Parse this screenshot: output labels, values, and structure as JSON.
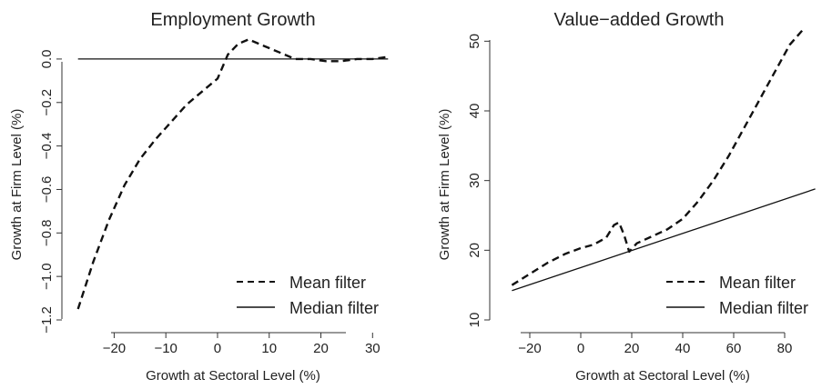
{
  "chart_data": [
    {
      "type": "line",
      "title": "Employment Growth",
      "xlabel": "Growth at Sectoral Level (%)",
      "ylabel": "Growth at Firm Level (%)",
      "xlim": [
        -28,
        34
      ],
      "ylim": [
        -1.2,
        0.1
      ],
      "xticks": [
        -20,
        -10,
        0,
        10,
        20,
        30
      ],
      "xtick_labels": [
        "−20",
        "−10",
        "0",
        "10",
        "20",
        "30"
      ],
      "yticks": [
        -1.2,
        -1.0,
        -0.8,
        -0.6,
        -0.4,
        -0.2,
        0.0
      ],
      "ytick_labels": [
        "−1.2",
        "−1.0",
        "−0.8",
        "−0.6",
        "−0.4",
        "−0.2",
        "0.0"
      ],
      "legend": {
        "position": "bottom-right",
        "entries": [
          "Mean filter",
          "Median filter"
        ]
      },
      "series": [
        {
          "name": "Mean filter",
          "style": "dashed",
          "x": [
            -27,
            -24,
            -21,
            -18,
            -15,
            -12,
            -9,
            -6,
            -3,
            0,
            2,
            4,
            6,
            9,
            12,
            15,
            18,
            21,
            24,
            27,
            30,
            33
          ],
          "y": [
            -1.15,
            -0.93,
            -0.74,
            -0.58,
            -0.46,
            -0.37,
            -0.29,
            -0.21,
            -0.15,
            -0.09,
            0.02,
            0.07,
            0.09,
            0.06,
            0.03,
            0.0,
            0.0,
            -0.01,
            -0.01,
            0.0,
            0.0,
            0.01
          ]
        },
        {
          "name": "Median filter",
          "style": "solid",
          "x": [
            -27,
            33
          ],
          "y": [
            0.0,
            0.0
          ]
        }
      ]
    },
    {
      "type": "line",
      "title": "Value−added Growth",
      "xlabel": "Growth at Sectoral Level (%)",
      "ylabel": "Growth at Firm Level (%)",
      "xlim": [
        -30,
        95
      ],
      "ylim": [
        10,
        52
      ],
      "xticks": [
        -20,
        0,
        20,
        40,
        60,
        80
      ],
      "xtick_labels": [
        "−20",
        "0",
        "20",
        "40",
        "60",
        "80"
      ],
      "yticks": [
        10,
        20,
        30,
        40,
        50
      ],
      "ytick_labels": [
        "10",
        "20",
        "30",
        "40",
        "50"
      ],
      "legend": {
        "position": "bottom-right",
        "entries": [
          "Mean filter",
          "Median filter"
        ]
      },
      "series": [
        {
          "name": "Mean filter",
          "style": "dashed",
          "x": [
            -27,
            -20,
            -13,
            -6,
            0,
            5,
            10,
            13,
            15,
            17,
            19,
            22,
            28,
            34,
            40,
            46,
            52,
            58,
            64,
            70,
            76,
            82,
            88
          ],
          "y": [
            15,
            16.6,
            18.2,
            19.5,
            20.3,
            20.8,
            21.8,
            23.6,
            24,
            22.2,
            19.8,
            21,
            22,
            23,
            24.5,
            27,
            30,
            33.5,
            37.5,
            41.5,
            45.5,
            49.5,
            52
          ]
        },
        {
          "name": "Median filter",
          "style": "solid",
          "x": [
            -27,
            92
          ],
          "y": [
            14.2,
            28.8
          ]
        }
      ]
    }
  ]
}
